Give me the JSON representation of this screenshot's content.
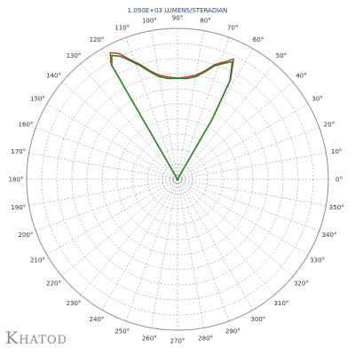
{
  "brand": {
    "name": "Khatod"
  },
  "colors": {
    "grid": "#8c8c8c",
    "series_red": "#d42a1a",
    "series_green": "#1f8a25",
    "title": "#2a3cbf"
  },
  "chart_data": {
    "type": "polar-line",
    "title": "1.090E+03 LUMENS/STERADIAN",
    "angle_unit": "degrees",
    "angle_zero": "right",
    "angle_direction": "counterclockwise",
    "angle_ticks": [
      0,
      10,
      20,
      30,
      40,
      50,
      60,
      70,
      80,
      90,
      100,
      110,
      120,
      130,
      140,
      150,
      160,
      170,
      180,
      190,
      200,
      210,
      220,
      230,
      240,
      250,
      260,
      270,
      280,
      290,
      300,
      310,
      320,
      330,
      340,
      350
    ],
    "angle_tick_labels": [
      "0°",
      "10°",
      "20°",
      "30°",
      "40°",
      "50°",
      "60°",
      "70°",
      "80°",
      "90°",
      "100°",
      "110°",
      "120°",
      "130°",
      "140°",
      "150°",
      "160°",
      "170°",
      "180°",
      "190°",
      "200°",
      "210°",
      "220°",
      "230°",
      "240°",
      "250°",
      "260°",
      "270°",
      "280°",
      "290°",
      "300°",
      "310°",
      "320°",
      "330°",
      "340°",
      "350°"
    ],
    "radial_rings": 10,
    "rlim": [
      0,
      1
    ],
    "grid": true,
    "series": [
      {
        "color": "#d42a1a",
        "angles": [
          58,
          60,
          62,
          65,
          68,
          72,
          76,
          80,
          85,
          90,
          95,
          100,
          104,
          108,
          112,
          115,
          118,
          120,
          122
        ],
        "values": [
          0.0,
          0.45,
          0.75,
          0.88,
          0.84,
          0.8,
          0.74,
          0.7,
          0.68,
          0.67,
          0.68,
          0.7,
          0.74,
          0.8,
          0.86,
          0.92,
          0.95,
          0.88,
          0.0
        ]
      },
      {
        "color": "#1f8a25",
        "angles": [
          58,
          60,
          62,
          65,
          68,
          72,
          76,
          80,
          85,
          90,
          95,
          100,
          104,
          108,
          112,
          115,
          118,
          120,
          122
        ],
        "values": [
          0.0,
          0.46,
          0.74,
          0.86,
          0.83,
          0.79,
          0.73,
          0.69,
          0.67,
          0.67,
          0.67,
          0.69,
          0.73,
          0.79,
          0.85,
          0.9,
          0.93,
          0.87,
          0.0
        ]
      }
    ]
  }
}
